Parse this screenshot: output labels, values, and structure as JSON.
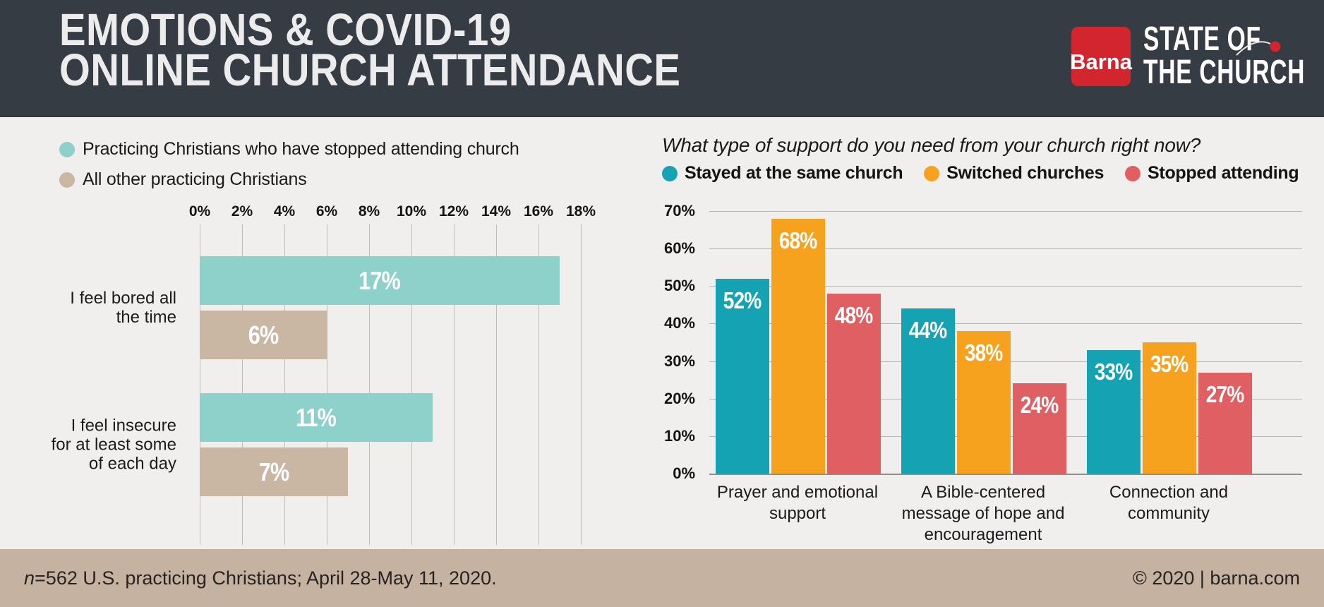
{
  "header": {
    "title_line1": "EMOTIONS & COVID-19",
    "title_line2": "ONLINE CHURCH ATTENDANCE",
    "logo_text": "Barna",
    "brand_line1": "STATE OF",
    "brand_line2": "THE CHURCH"
  },
  "colors": {
    "header_bg": "#363c44",
    "background": "#f0efee",
    "footer_bg": "#c5b2a0",
    "barna_red": "#d2252e",
    "gridline": "#bcbcbc",
    "left_teal": "#8ed0ca",
    "left_tan": "#c9b7a3",
    "cyan": "#15a2b3",
    "orange": "#f6a21e",
    "coral": "#e05f63"
  },
  "chart_data": [
    {
      "type": "bar",
      "orientation": "horizontal",
      "title": "",
      "categories": [
        "I feel bored all\nthe time",
        "I feel insecure\nfor at least some\nof each day"
      ],
      "series": [
        {
          "name": "Practicing Christians who have stopped attending church",
          "color": "#8ed0ca",
          "values": [
            17,
            11
          ]
        },
        {
          "name": "All other practicing Christians",
          "color": "#c9b7a3",
          "values": [
            6,
            7
          ]
        }
      ],
      "xlim": [
        0,
        18
      ],
      "ticks": [
        "0%",
        "2%",
        "4%",
        "6%",
        "8%",
        "10%",
        "12%",
        "14%",
        "16%",
        "18%"
      ],
      "grid": true,
      "legend_position": "top-left",
      "value_label_suffix": "%"
    },
    {
      "type": "bar",
      "orientation": "vertical",
      "title": "What type of support do you need from your church right now?",
      "categories": [
        "Prayer and emotional\nsupport",
        "A Bible-centered\nmessage of hope and\nencouragement",
        "Connection and\ncommunity"
      ],
      "series": [
        {
          "name": "Stayed at the same church",
          "color": "#15a2b3",
          "values": [
            52,
            44,
            33
          ]
        },
        {
          "name": "Switched churches",
          "color": "#f6a21e",
          "values": [
            68,
            38,
            35
          ]
        },
        {
          "name": "Stopped attending",
          "color": "#e05f63",
          "values": [
            48,
            24,
            27
          ]
        }
      ],
      "ylim": [
        0,
        70
      ],
      "yticks": [
        "70%",
        "60%",
        "50%",
        "40%",
        "30%",
        "20%",
        "10%",
        "0%"
      ],
      "grid": true,
      "legend_position": "top",
      "value_label_suffix": "%"
    }
  ],
  "footer": {
    "note_prefix": "n",
    "note_rest": "=562 U.S. practicing Christians; April 28-May 11, 2020.",
    "copyright": "© 2020 | barna.com"
  }
}
